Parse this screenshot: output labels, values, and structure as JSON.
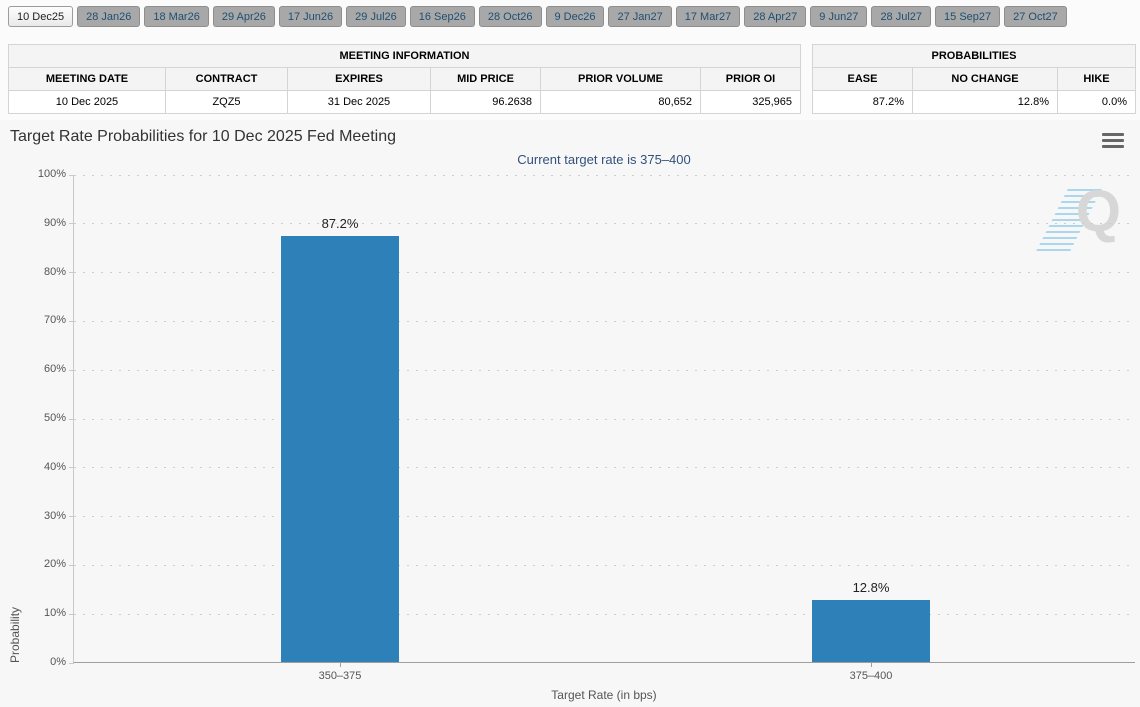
{
  "tabs": {
    "items": [
      {
        "label": "10 Dec25",
        "selected": true
      },
      {
        "label": "28 Jan26",
        "selected": false
      },
      {
        "label": "18 Mar26",
        "selected": false
      },
      {
        "label": "29 Apr26",
        "selected": false
      },
      {
        "label": "17 Jun26",
        "selected": false
      },
      {
        "label": "29 Jul26",
        "selected": false
      },
      {
        "label": "16 Sep26",
        "selected": false
      },
      {
        "label": "28 Oct26",
        "selected": false
      },
      {
        "label": "9 Dec26",
        "selected": false
      },
      {
        "label": "27 Jan27",
        "selected": false
      },
      {
        "label": "17 Mar27",
        "selected": false
      },
      {
        "label": "28 Apr27",
        "selected": false
      },
      {
        "label": "9 Jun27",
        "selected": false
      },
      {
        "label": "28 Jul27",
        "selected": false
      },
      {
        "label": "15 Sep27",
        "selected": false
      },
      {
        "label": "27 Oct27",
        "selected": false
      }
    ]
  },
  "meeting_info": {
    "title": "MEETING INFORMATION",
    "columns": [
      "MEETING DATE",
      "CONTRACT",
      "EXPIRES",
      "MID PRICE",
      "PRIOR VOLUME",
      "PRIOR OI"
    ],
    "row": [
      "10 Dec 2025",
      "ZQZ5",
      "31 Dec 2025",
      "96.2638",
      "80,652",
      "325,965"
    ]
  },
  "probabilities": {
    "title": "PROBABILITIES",
    "columns": [
      "EASE",
      "NO CHANGE",
      "HIKE"
    ],
    "row": [
      "87.2%",
      "12.8%",
      "0.0%"
    ]
  },
  "chart_data": {
    "type": "bar",
    "title": "Target Rate Probabilities for 10 Dec 2025 Fed Meeting",
    "subtitle": "Current target rate is 375–400",
    "categories": [
      "350–375",
      "375–400"
    ],
    "values": [
      87.2,
      12.8
    ],
    "data_labels": [
      "87.2%",
      "12.8%"
    ],
    "xlabel": "Target Rate (in bps)",
    "ylabel": "Probability",
    "ylim": [
      0,
      100
    ],
    "yticks": [
      {
        "value": 100,
        "label": "100%"
      },
      {
        "value": 90,
        "label": "90%"
      },
      {
        "value": 80,
        "label": "80%"
      },
      {
        "value": 70,
        "label": "70%"
      },
      {
        "value": 60,
        "label": "60%"
      },
      {
        "value": 50,
        "label": "50%"
      },
      {
        "value": 40,
        "label": "40%"
      },
      {
        "value": 30,
        "label": "30%"
      },
      {
        "value": 20,
        "label": "20%"
      },
      {
        "value": 10,
        "label": "10%"
      },
      {
        "value": 0,
        "label": "0%"
      }
    ],
    "grid": "dotted-horizontal",
    "legend_position": "none",
    "bar_color": "#2e80b9",
    "watermark_letter": "Q"
  },
  "icons": {
    "chart_context_menu": "hamburger-menu-icon"
  },
  "colors": {
    "bar": "#2e80b9",
    "subtitle_text": "#33517c",
    "tab_label": "#1e4f72",
    "chart_background": "#f7f7f7"
  }
}
